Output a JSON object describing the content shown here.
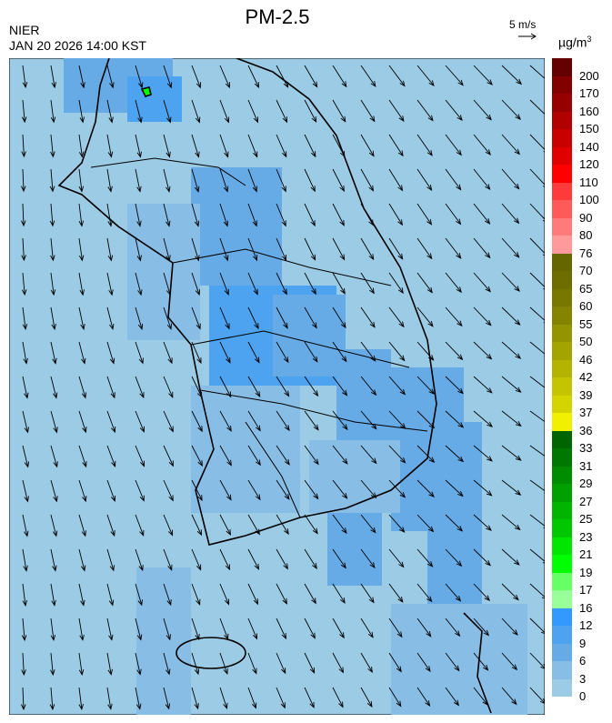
{
  "title": "PM-2.5",
  "agency": "NIER",
  "timestamp": "JAN 20 2026 14:00 KST",
  "wind_scale": {
    "label": "5 m/s",
    "icon": "arrow-right-icon"
  },
  "unit": "µg/m",
  "unit_sup": "3",
  "legend": {
    "labels": [
      "200",
      "170",
      "160",
      "150",
      "140",
      "120",
      "110",
      "100",
      "90",
      "80",
      "76",
      "70",
      "65",
      "60",
      "55",
      "50",
      "46",
      "42",
      "39",
      "37",
      "36",
      "33",
      "31",
      "29",
      "27",
      "25",
      "23",
      "21",
      "19",
      "17",
      "16",
      "12",
      "9",
      "6",
      "3",
      "0"
    ],
    "colors": [
      "#640000",
      "#820000",
      "#960000",
      "#b00000",
      "#c80000",
      "#e00000",
      "#ff0000",
      "#ff3a3a",
      "#ff5a5a",
      "#ff7a7a",
      "#ff9a9a",
      "#666600",
      "#6e6e00",
      "#787800",
      "#848400",
      "#949400",
      "#a4a400",
      "#b4b400",
      "#c4c400",
      "#d4d400",
      "#f0f000",
      "#006400",
      "#007800",
      "#008c00",
      "#00a000",
      "#00b400",
      "#00c800",
      "#00e600",
      "#00ff00",
      "#66ff66",
      "#99ff99",
      "#3399ff",
      "#4da3f0",
      "#66aae6",
      "#88bde6",
      "#9ccbe6"
    ]
  },
  "map_colors": {
    "background": "#9ccbe6",
    "low": "#88bde6",
    "mid": "#66aae6",
    "high": "#4da3f0",
    "hotspot": "#00ff00"
  }
}
